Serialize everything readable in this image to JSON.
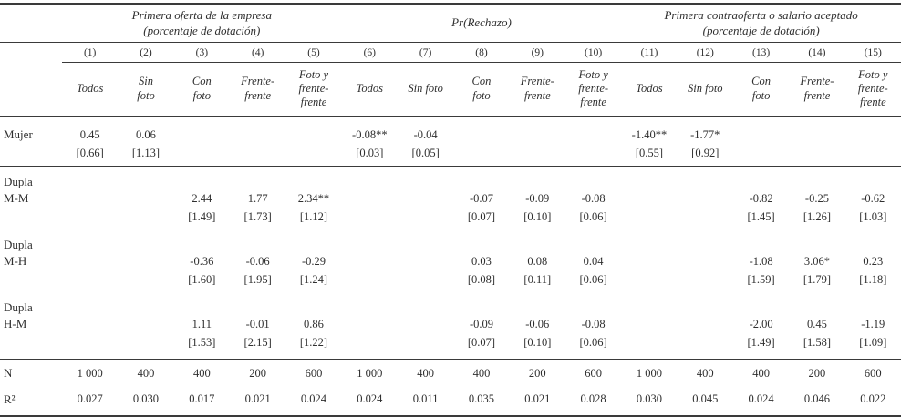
{
  "colors": {
    "background": "#ffffff",
    "text": "#2f2f2f",
    "rule": "#3a3a3a"
  },
  "table": {
    "groups": [
      {
        "label": "Primera oferta de la empresa\n(porcentaje de dotación)"
      },
      {
        "label": "Pr(Rechazo)"
      },
      {
        "label": "Primera contraoferta o salario aceptado\n(porcentaje de dotación)"
      }
    ],
    "col_numbers": [
      "(1)",
      "(2)",
      "(3)",
      "(4)",
      "(5)",
      "(6)",
      "(7)",
      "(8)",
      "(9)",
      "(10)",
      "(11)",
      "(12)",
      "(13)",
      "(14)",
      "(15)"
    ],
    "col_headers": [
      "Todos",
      "Sin\nfoto",
      "Con\nfoto",
      "Frente-\nfrente",
      "Foto y\nfrente-\nfrente",
      "Todos",
      "Sin foto",
      "Con\nfoto",
      "Frente-\nfrente",
      "Foto y\nfrente-\nfrente",
      "Todos",
      "Sin foto",
      "Con\nfoto",
      "Frente-\nfrente",
      "Foto y\nfrente-\nfrente"
    ],
    "rows": [
      {
        "label": "Mujer",
        "coef": [
          "0.45",
          "0.06",
          "",
          "",
          "",
          "-0.08**",
          "-0.04",
          "",
          "",
          "",
          "-1.40**",
          "-1.77*",
          "",
          "",
          ""
        ],
        "se": [
          "[0.66]",
          "[1.13]",
          "",
          "",
          "",
          "[0.03]",
          "[0.05]",
          "",
          "",
          "",
          "[0.55]",
          "[0.92]",
          "",
          "",
          ""
        ]
      },
      {
        "label": "Dupla\nM-M",
        "coef": [
          "",
          "",
          "2.44",
          "1.77",
          "2.34**",
          "",
          "",
          "-0.07",
          "-0.09",
          "-0.08",
          "",
          "",
          "-0.82",
          "-0.25",
          "-0.62"
        ],
        "se": [
          "",
          "",
          "[1.49]",
          "[1.73]",
          "[1.12]",
          "",
          "",
          "[0.07]",
          "[0.10]",
          "[0.06]",
          "",
          "",
          "[1.45]",
          "[1.26]",
          "[1.03]"
        ]
      },
      {
        "label": "Dupla\nM-H",
        "coef": [
          "",
          "",
          "-0.36",
          "-0.06",
          "-0.29",
          "",
          "",
          "0.03",
          "0.08",
          "0.04",
          "",
          "",
          "-1.08",
          "3.06*",
          "0.23"
        ],
        "se": [
          "",
          "",
          "[1.60]",
          "[1.95]",
          "[1.24]",
          "",
          "",
          "[0.08]",
          "[0.11]",
          "[0.06]",
          "",
          "",
          "[1.59]",
          "[1.79]",
          "[1.18]"
        ]
      },
      {
        "label": "Dupla\nH-M",
        "coef": [
          "",
          "",
          "1.11",
          "-0.01",
          "0.86",
          "",
          "",
          "-0.09",
          "-0.06",
          "-0.08",
          "",
          "",
          "-2.00",
          "0.45",
          "-1.19"
        ],
        "se": [
          "",
          "",
          "[1.53]",
          "[2.15]",
          "[1.22]",
          "",
          "",
          "[0.07]",
          "[0.10]",
          "[0.06]",
          "",
          "",
          "[1.49]",
          "[1.58]",
          "[1.09]"
        ]
      }
    ],
    "stats": [
      {
        "label": "N",
        "values": [
          "1 000",
          "400",
          "400",
          "200",
          "600",
          "1 000",
          "400",
          "400",
          "200",
          "600",
          "1 000",
          "400",
          "400",
          "200",
          "600"
        ]
      },
      {
        "label": "R²",
        "values": [
          "0.027",
          "0.030",
          "0.017",
          "0.021",
          "0.024",
          "0.024",
          "0.011",
          "0.035",
          "0.021",
          "0.028",
          "0.030",
          "0.045",
          "0.024",
          "0.046",
          "0.022"
        ]
      }
    ]
  }
}
